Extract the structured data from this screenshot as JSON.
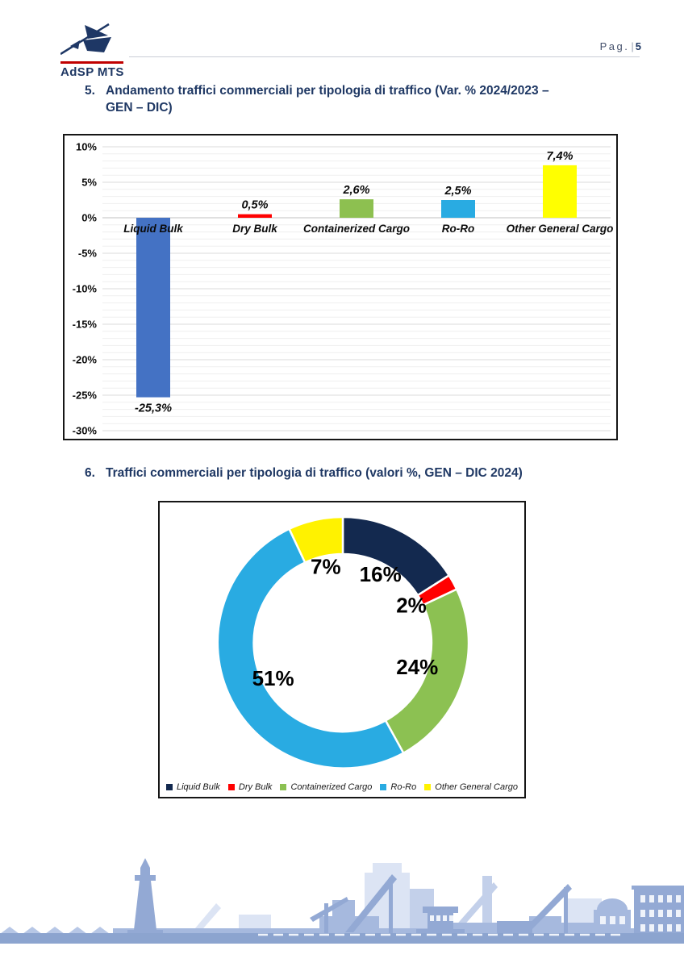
{
  "header": {
    "logo_text": "AdSP MTS",
    "page_label": "Pag.",
    "page_separator": "|",
    "page_number": "5"
  },
  "colors": {
    "accent_navy": "#1F3864",
    "logo_red": "#C00000"
  },
  "sections": [
    {
      "number": "5.",
      "title_lines": [
        "Andamento traffici commerciali per tipologia di traffico (Var. % 2024/2023 –",
        "GEN – DIC)"
      ]
    },
    {
      "number": "6.",
      "title_lines": [
        "Traffici commerciali per tipologia di traffico (valori %, GEN – DIC 2024)"
      ]
    }
  ],
  "chart_data": [
    {
      "type": "bar",
      "title": "Andamento traffici commerciali per tipologia di traffico (Var. % 2024/2023 – GEN – DIC)",
      "categories": [
        "Liquid Bulk",
        "Dry Bulk",
        "Containerized Cargo",
        "Ro-Ro",
        "Other General Cargo"
      ],
      "values": [
        -25.3,
        0.5,
        2.6,
        2.5,
        7.4
      ],
      "value_labels": [
        "-25,3%",
        "0,5%",
        "2,6%",
        "2,5%",
        "7,4%"
      ],
      "bar_colors": [
        "#4472C4",
        "#FF0000",
        "#8DC050",
        "#29ABE2",
        "#FFFF00"
      ],
      "xlabel": "",
      "ylabel": "",
      "ylim": [
        -30,
        10
      ],
      "ytick_step": 5,
      "ytick_labels": [
        "10%",
        "5%",
        "0%",
        "-5%",
        "-10%",
        "-15%",
        "-20%",
        "-25%",
        "-30%"
      ],
      "grid": true
    },
    {
      "type": "pie",
      "subtype": "donut",
      "title": "Traffici commerciali per tipologia di traffico (valori %, GEN – DIC 2024)",
      "categories": [
        "Liquid Bulk",
        "Dry Bulk",
        "Containerized Cargo",
        "Ro-Ro",
        "Other General Cargo"
      ],
      "values": [
        16,
        2,
        24,
        51,
        7
      ],
      "slice_labels": [
        "16%",
        "2%",
        "24%",
        "51%",
        "7%"
      ],
      "colors": [
        "#13294F",
        "#FF0000",
        "#8CC152",
        "#29ABE2",
        "#FFF200"
      ],
      "start_angle_deg": 0,
      "direction": "clockwise",
      "legend_position": "bottom"
    }
  ]
}
